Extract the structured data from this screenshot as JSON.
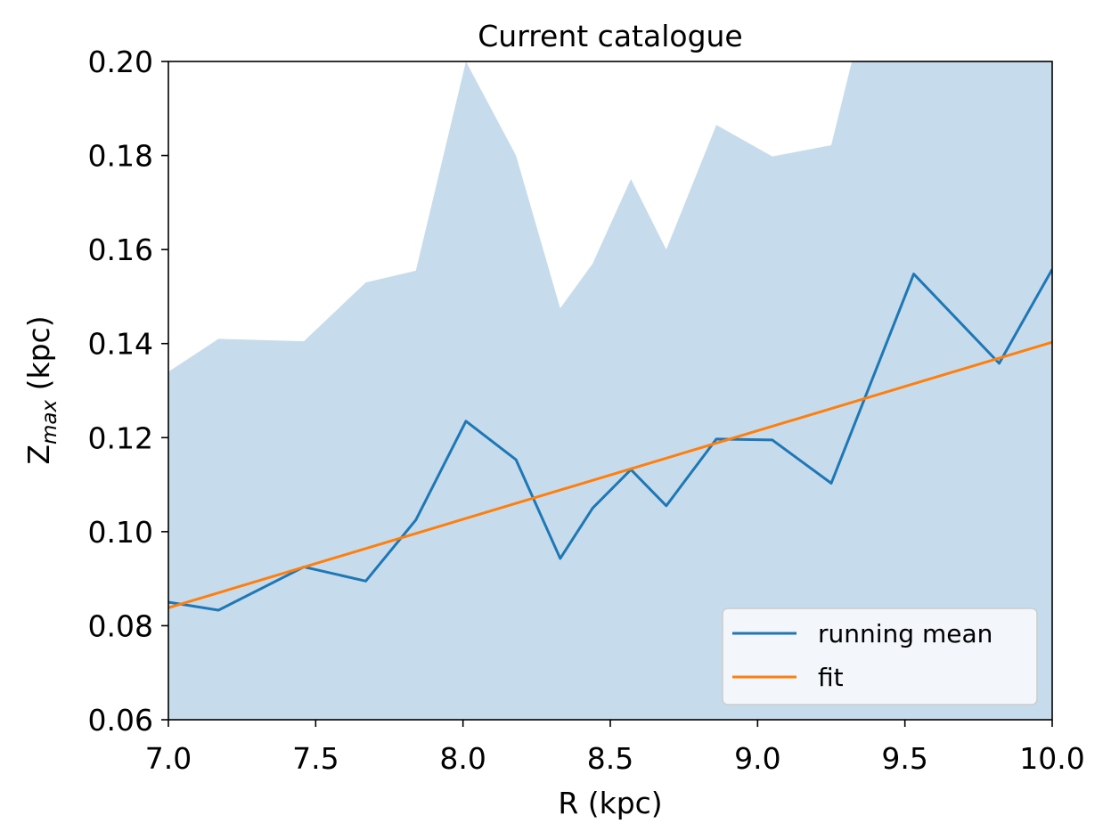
{
  "chart_data": {
    "type": "line",
    "title": "Current catalogue",
    "xlabel": "R (kpc)",
    "ylabel": {
      "main": "Z",
      "sub": "max",
      "suffix": " (kpc)"
    },
    "xlim": [
      7.0,
      10.0
    ],
    "ylim": [
      0.06,
      0.2
    ],
    "xticks": [
      "7.0",
      "7.5",
      "8.0",
      "8.5",
      "9.0",
      "9.5",
      "10.0"
    ],
    "yticks": [
      "0.06",
      "0.08",
      "0.10",
      "0.12",
      "0.14",
      "0.16",
      "0.18",
      "0.20"
    ],
    "grid": false,
    "legend_position": "bottom-right",
    "band": {
      "color": "#c6dcec",
      "x": [
        7.0,
        7.17,
        7.46,
        7.67,
        7.84,
        8.01,
        8.18,
        8.33,
        8.44,
        8.57,
        8.69,
        8.86,
        9.05,
        9.25,
        9.32,
        9.53,
        9.82,
        10.0
      ],
      "upper": [
        0.134,
        0.141,
        0.1405,
        0.153,
        0.1555,
        0.2,
        0.18,
        0.1475,
        0.157,
        0.175,
        0.16,
        0.1865,
        0.1798,
        0.1822,
        0.2,
        0.2,
        0.2,
        0.2
      ],
      "lower": 0.06
    },
    "series": [
      {
        "name": "running mean",
        "color": "#1f77b4",
        "x": [
          7.0,
          7.17,
          7.46,
          7.67,
          7.84,
          8.01,
          8.18,
          8.33,
          8.44,
          8.57,
          8.69,
          8.86,
          9.05,
          9.25,
          9.53,
          9.82,
          10.0
        ],
        "values": [
          0.085,
          0.0833,
          0.0925,
          0.0895,
          0.1025,
          0.1235,
          0.1153,
          0.0943,
          0.105,
          0.1132,
          0.1055,
          0.1197,
          0.1195,
          0.1103,
          0.1548,
          0.1358,
          0.1558
        ]
      },
      {
        "name": "fit",
        "color": "#ff7f0e",
        "x": [
          7.0,
          10.0
        ],
        "values": [
          0.0838,
          0.1403
        ]
      }
    ]
  }
}
